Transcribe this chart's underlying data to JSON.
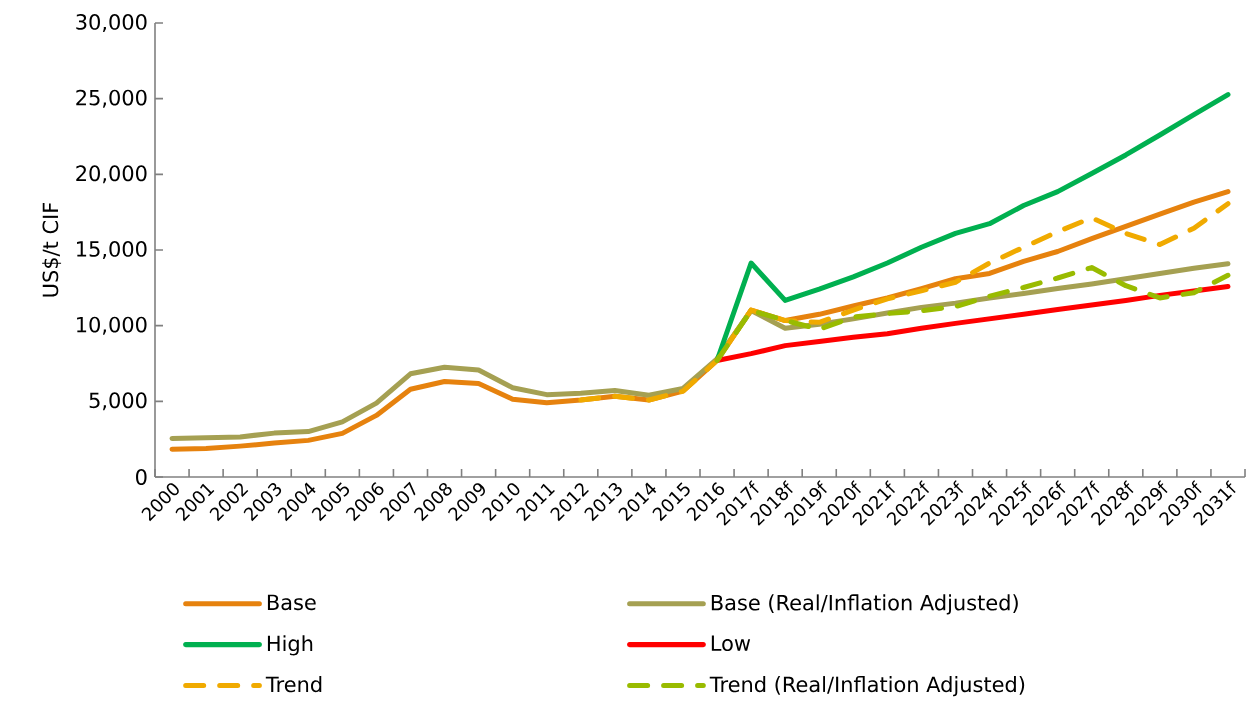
{
  "chart_data": {
    "type": "line",
    "ylabel": "US$/t CIF",
    "categories": [
      "2000",
      "2001",
      "2002",
      "2003",
      "2004",
      "2005",
      "2006",
      "2007",
      "2008",
      "2009",
      "2010",
      "2011",
      "2012",
      "2013",
      "2014",
      "2015",
      "2016",
      "2017f",
      "2018f",
      "2019f",
      "2020f",
      "2021f",
      "2022f",
      "2023f",
      "2024f",
      "2025f",
      "2026f",
      "2027f",
      "2028f",
      "2029f",
      "2030f",
      "2031f"
    ],
    "ylim": [
      0,
      30000
    ],
    "yticks": [
      {
        "value": 0,
        "label": "0"
      },
      {
        "value": 5000,
        "label": "5,000"
      },
      {
        "value": 10000,
        "label": "10,000"
      },
      {
        "value": 15000,
        "label": "15,000"
      },
      {
        "value": 20000,
        "label": "20,000"
      },
      {
        "value": 25000,
        "label": "25,000"
      },
      {
        "value": 30000,
        "label": "30,000"
      }
    ],
    "legend": "bottom",
    "series": [
      {
        "name": "Base",
        "color": "#e6820e",
        "line_style": "solid",
        "values": [
          1840,
          1890,
          2040,
          2240,
          2420,
          2880,
          4070,
          5800,
          6310,
          6180,
          5140,
          4910,
          5090,
          5340,
          5090,
          5670,
          7700,
          11030,
          10340,
          10750,
          11300,
          11830,
          12450,
          13100,
          13450,
          14250,
          14900,
          15750,
          16560,
          17370,
          18170,
          18860
        ]
      },
      {
        "name": "Base (Real/Inflation Adjusted)",
        "color": "#a5a052",
        "line_style": "solid",
        "values": [
          2550,
          2600,
          2650,
          2900,
          3000,
          3640,
          4880,
          6820,
          7250,
          7070,
          5900,
          5440,
          5540,
          5720,
          5400,
          5850,
          7810,
          11000,
          9830,
          10100,
          10450,
          10840,
          11210,
          11490,
          11830,
          12130,
          12450,
          12760,
          13100,
          13450,
          13790,
          14090
        ]
      },
      {
        "name": "High",
        "color": "#00b050",
        "line_style": "solid",
        "values": [
          null,
          null,
          null,
          null,
          null,
          null,
          null,
          null,
          null,
          null,
          null,
          null,
          null,
          null,
          null,
          null,
          7700,
          14140,
          11670,
          12410,
          13220,
          14140,
          15180,
          16100,
          16740,
          17940,
          18860,
          20060,
          21280,
          22600,
          23940,
          25270
        ]
      },
      {
        "name": "Low",
        "color": "#ff0000",
        "line_style": "solid",
        "values": [
          null,
          null,
          null,
          null,
          null,
          null,
          null,
          null,
          null,
          null,
          null,
          null,
          null,
          null,
          null,
          null,
          7700,
          8150,
          8680,
          8950,
          9230,
          9460,
          9830,
          10150,
          10450,
          10750,
          11070,
          11370,
          11670,
          12000,
          12290,
          12590
        ]
      },
      {
        "name": "Trend",
        "color": "#f0aa00",
        "line_style": "dashed",
        "values": [
          null,
          null,
          null,
          null,
          null,
          null,
          null,
          null,
          null,
          null,
          null,
          null,
          5090,
          5340,
          5090,
          5670,
          7700,
          11030,
          10340,
          10220,
          11030,
          11770,
          12300,
          12870,
          14140,
          15180,
          16210,
          17130,
          16100,
          15360,
          16440,
          18060
        ]
      },
      {
        "name": "Trend (Real/Inflation Adjusted)",
        "color": "#99bb00",
        "line_style": "dashed",
        "values": [
          null,
          null,
          null,
          null,
          null,
          null,
          null,
          null,
          null,
          null,
          null,
          null,
          null,
          null,
          null,
          null,
          7700,
          11000,
          10340,
          9760,
          10570,
          10800,
          10980,
          11260,
          11950,
          12520,
          13150,
          13840,
          12640,
          11830,
          12180,
          13330
        ]
      }
    ]
  }
}
